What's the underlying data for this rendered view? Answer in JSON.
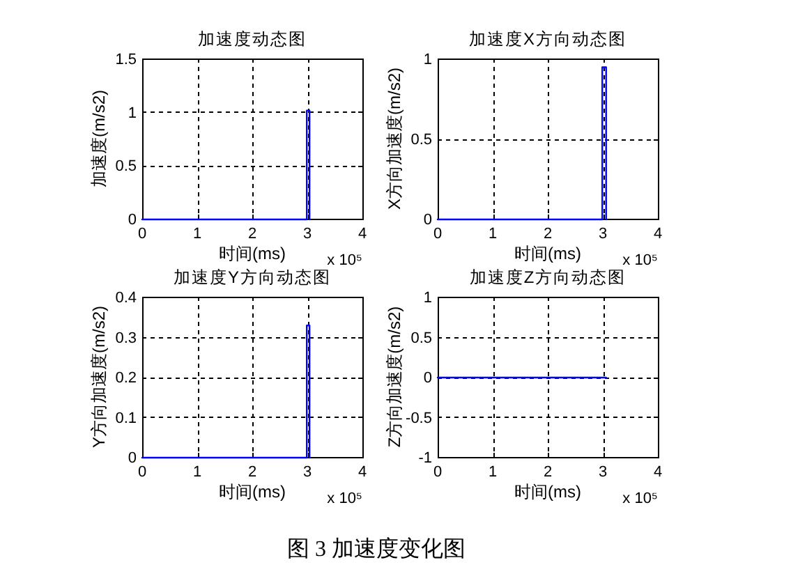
{
  "chart_data": [
    {
      "type": "line",
      "title": "加速度动态图",
      "xlabel": "时间(ms)",
      "ylabel": "加速度(m/s2)",
      "annotations": [
        "x 10⁵"
      ],
      "x": [
        0,
        2.99,
        2.99,
        3.04,
        3.04
      ],
      "values": [
        0,
        0,
        1.02,
        1.02,
        0
      ],
      "color": "#0000ff",
      "xlim": [
        0,
        4
      ],
      "xticks": [
        0,
        1,
        2,
        3,
        4
      ],
      "ylim": [
        0,
        1.5
      ],
      "yticks": [
        0,
        0.5,
        1,
        1.5
      ],
      "grid": true
    },
    {
      "type": "line",
      "title": "加速度X方向动态图",
      "xlabel": "时间(ms)",
      "ylabel": "X方向加速度(m/s2)",
      "annotations": [
        "x 10⁵"
      ],
      "x": [
        0,
        2.99,
        2.99,
        3.06,
        3.06
      ],
      "values": [
        0,
        0,
        0.95,
        0.95,
        0
      ],
      "color": "#0000ff",
      "xlim": [
        0,
        4
      ],
      "xticks": [
        0,
        1,
        2,
        3,
        4
      ],
      "ylim": [
        0,
        1
      ],
      "yticks": [
        0,
        0.5,
        1
      ],
      "grid": true
    },
    {
      "type": "line",
      "title": "加速度Y方向动态图",
      "xlabel": "时间(ms)",
      "ylabel": "Y方向加速度(m/s2)",
      "annotations": [
        "x 10⁵"
      ],
      "x": [
        0,
        2.99,
        2.99,
        3.04,
        3.04
      ],
      "values": [
        0,
        0,
        0.33,
        0.33,
        0
      ],
      "color": "#0000ff",
      "xlim": [
        0,
        4
      ],
      "xticks": [
        0,
        1,
        2,
        3,
        4
      ],
      "ylim": [
        0,
        0.4
      ],
      "yticks": [
        0,
        0.1,
        0.2,
        0.3,
        0.4
      ],
      "grid": true
    },
    {
      "type": "line",
      "title": "加速度Z方向动态图",
      "xlabel": "时间(ms)",
      "ylabel": "Z方向加速度(m/s2)",
      "annotations": [
        "x 10⁵"
      ],
      "x": [
        0,
        3.06
      ],
      "values": [
        0,
        0
      ],
      "color": "#0000ff",
      "xlim": [
        0,
        4
      ],
      "xticks": [
        0,
        1,
        2,
        3,
        4
      ],
      "ylim": [
        -1,
        1
      ],
      "yticks": [
        -1,
        -0.5,
        0,
        0.5,
        1
      ],
      "grid": true
    },
    {
      "type": "other",
      "annotations": [
        "图 3 加速度变化图"
      ]
    }
  ]
}
